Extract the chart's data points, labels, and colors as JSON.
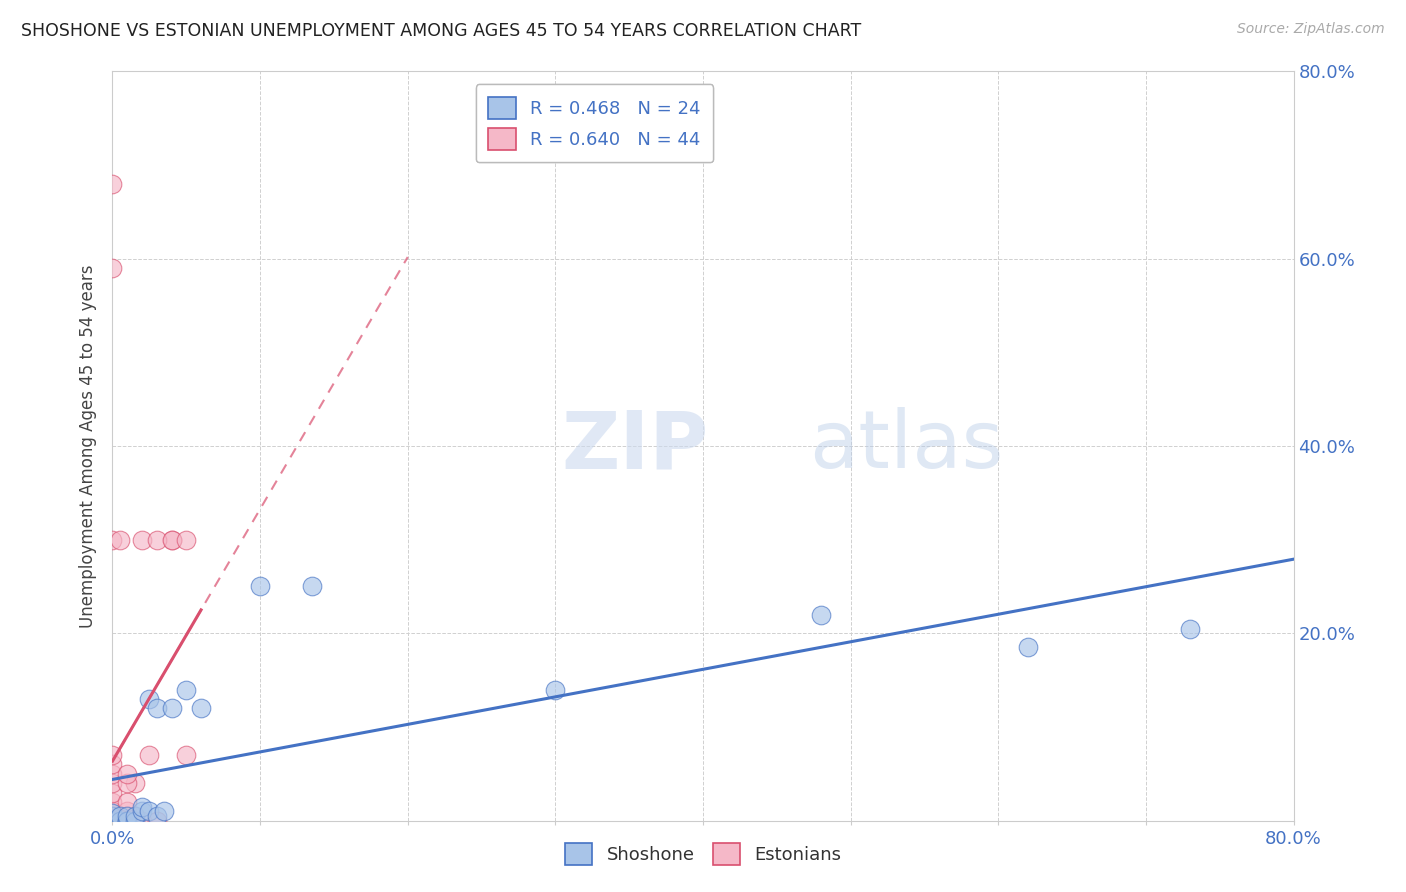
{
  "title": "SHOSHONE VS ESTONIAN UNEMPLOYMENT AMONG AGES 45 TO 54 YEARS CORRELATION CHART",
  "source": "Source: ZipAtlas.com",
  "ylabel": "Unemployment Among Ages 45 to 54 years",
  "xlim": [
    0.0,
    0.8
  ],
  "ylim": [
    0.0,
    0.8
  ],
  "xtick_positions": [
    0.0,
    0.1,
    0.2,
    0.3,
    0.4,
    0.5,
    0.6,
    0.7,
    0.8
  ],
  "ytick_positions": [
    0.0,
    0.2,
    0.4,
    0.6,
    0.8
  ],
  "xticklabels": [
    "0.0%",
    "",
    "",
    "",
    "",
    "",
    "",
    "",
    "80.0%"
  ],
  "yticklabels_right": [
    "",
    "20.0%",
    "40.0%",
    "60.0%",
    "80.0%"
  ],
  "shoshone_color": "#a8c4e8",
  "estonian_color": "#f5b8c8",
  "shoshone_line_color": "#4472c4",
  "estonian_line_color": "#d94f6e",
  "watermark_zip": "ZIP",
  "watermark_atlas": "atlas",
  "shoshone_x": [
    0.0,
    0.0,
    0.0,
    0.005,
    0.005,
    0.01,
    0.01,
    0.01,
    0.015,
    0.015,
    0.02,
    0.02,
    0.025,
    0.025,
    0.03,
    0.03,
    0.035,
    0.04,
    0.05,
    0.06,
    0.1,
    0.135,
    0.3,
    0.48,
    0.62,
    0.73
  ],
  "shoshone_y": [
    0.0,
    0.005,
    0.008,
    0.0,
    0.005,
    0.0,
    0.0,
    0.005,
    0.0,
    0.005,
    0.01,
    0.015,
    0.01,
    0.13,
    0.12,
    0.005,
    0.01,
    0.12,
    0.14,
    0.12,
    0.25,
    0.25,
    0.14,
    0.22,
    0.185,
    0.205
  ],
  "estonian_x": [
    0.0,
    0.0,
    0.0,
    0.0,
    0.0,
    0.0,
    0.0,
    0.0,
    0.0,
    0.0,
    0.0,
    0.0,
    0.0,
    0.0,
    0.0,
    0.0,
    0.0,
    0.0,
    0.0,
    0.0,
    0.0,
    0.005,
    0.005,
    0.005,
    0.01,
    0.01,
    0.01,
    0.01,
    0.015,
    0.015,
    0.015,
    0.02,
    0.025,
    0.03,
    0.04,
    0.05,
    0.005,
    0.01,
    0.01,
    0.01,
    0.02,
    0.03,
    0.04,
    0.05
  ],
  "estonian_y": [
    0.0,
    0.0,
    0.0,
    0.0,
    0.0,
    0.0,
    0.0,
    0.005,
    0.005,
    0.01,
    0.01,
    0.02,
    0.03,
    0.04,
    0.05,
    0.06,
    0.07,
    0.3,
    0.59,
    0.68,
    0.0,
    0.0,
    0.0,
    0.0,
    0.0,
    0.0,
    0.005,
    0.01,
    0.0,
    0.005,
    0.04,
    0.0,
    0.07,
    0.0,
    0.3,
    0.07,
    0.3,
    0.02,
    0.04,
    0.05,
    0.3,
    0.3,
    0.3,
    0.3
  ],
  "background_color": "#ffffff",
  "grid_color": "#d0d0d0"
}
